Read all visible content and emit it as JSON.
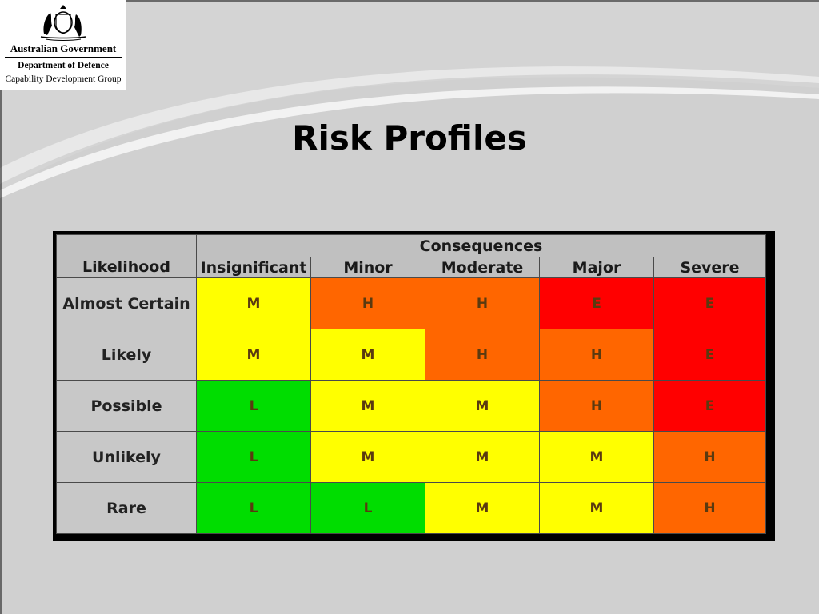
{
  "branding": {
    "government": "Australian Government",
    "department": "Department of Defence",
    "group": "Capability Development Group"
  },
  "slide": {
    "title": "Risk Profiles"
  },
  "matrix": {
    "consequences_header": "Consequences",
    "likelihood_header": "Likelihood",
    "consequences": [
      "Insignificant",
      "Minor",
      "Moderate",
      "Major",
      "Severe"
    ],
    "rows": [
      {
        "likelihood": "Almost Certain",
        "ratings": [
          "M",
          "H",
          "H",
          "E",
          "E"
        ]
      },
      {
        "likelihood": "Likely",
        "ratings": [
          "M",
          "M",
          "H",
          "H",
          "E"
        ]
      },
      {
        "likelihood": "Possible",
        "ratings": [
          "L",
          "M",
          "M",
          "H",
          "E"
        ]
      },
      {
        "likelihood": "Unlikely",
        "ratings": [
          "L",
          "M",
          "M",
          "M",
          "H"
        ]
      },
      {
        "likelihood": "Rare",
        "ratings": [
          "L",
          "L",
          "M",
          "M",
          "H"
        ]
      }
    ],
    "rating_colors": {
      "L": "#00dd00",
      "M": "#ffff00",
      "H": "#ff6600",
      "E": "#ff0000"
    }
  }
}
